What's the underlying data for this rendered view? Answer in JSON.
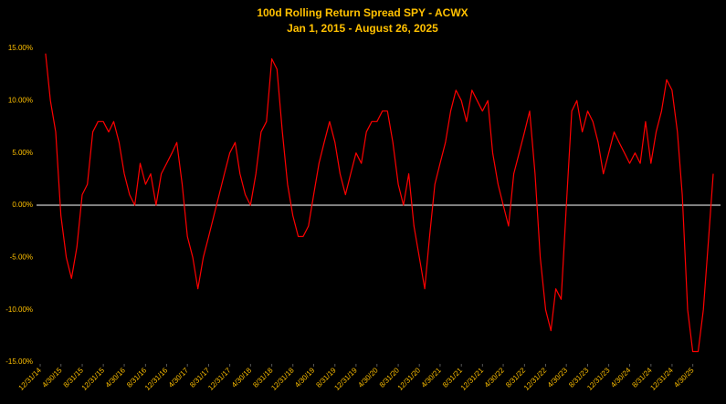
{
  "chart_data": {
    "type": "line",
    "title": "100d Rolling Return Spread SPY - ACWX",
    "subtitle": "Jan 1, 2015 - August 26, 2025",
    "x": [
      "2015-01-31",
      "2015-02-28",
      "2015-03-31",
      "2015-04-30",
      "2015-05-31",
      "2015-06-30",
      "2015-07-31",
      "2015-08-31",
      "2015-09-30",
      "2015-10-31",
      "2015-11-30",
      "2015-12-31",
      "2016-01-31",
      "2016-02-29",
      "2016-03-31",
      "2016-04-30",
      "2016-05-31",
      "2016-06-30",
      "2016-07-31",
      "2016-08-31",
      "2016-09-30",
      "2016-10-31",
      "2016-11-30",
      "2016-12-31",
      "2017-01-31",
      "2017-02-28",
      "2017-03-31",
      "2017-04-30",
      "2017-05-31",
      "2017-06-30",
      "2017-07-31",
      "2017-08-31",
      "2017-09-30",
      "2017-10-31",
      "2017-11-30",
      "2017-12-31",
      "2018-01-31",
      "2018-02-28",
      "2018-03-31",
      "2018-04-30",
      "2018-05-31",
      "2018-06-30",
      "2018-07-31",
      "2018-08-31",
      "2018-09-30",
      "2018-10-31",
      "2018-11-30",
      "2018-12-31",
      "2019-01-31",
      "2019-02-28",
      "2019-03-31",
      "2019-04-30",
      "2019-05-31",
      "2019-06-30",
      "2019-07-31",
      "2019-08-31",
      "2019-09-30",
      "2019-10-31",
      "2019-11-30",
      "2019-12-31",
      "2020-01-31",
      "2020-02-29",
      "2020-03-31",
      "2020-04-30",
      "2020-05-31",
      "2020-06-30",
      "2020-07-31",
      "2020-08-31",
      "2020-09-30",
      "2020-10-31",
      "2020-11-30",
      "2020-12-31",
      "2021-01-31",
      "2021-02-28",
      "2021-03-31",
      "2021-04-30",
      "2021-05-31",
      "2021-06-30",
      "2021-07-31",
      "2021-08-31",
      "2021-09-30",
      "2021-10-31",
      "2021-11-30",
      "2021-12-31",
      "2022-01-31",
      "2022-02-28",
      "2022-03-31",
      "2022-04-30",
      "2022-05-31",
      "2022-06-30",
      "2022-07-31",
      "2022-08-31",
      "2022-09-30",
      "2022-10-31",
      "2022-11-30",
      "2022-12-31",
      "2023-01-31",
      "2023-02-28",
      "2023-03-31",
      "2023-04-30",
      "2023-05-31",
      "2023-06-30",
      "2023-07-31",
      "2023-08-31",
      "2023-09-30",
      "2023-10-31",
      "2023-11-30",
      "2023-12-31",
      "2024-01-31",
      "2024-02-29",
      "2024-03-31",
      "2024-04-30",
      "2024-05-31",
      "2024-06-30",
      "2024-07-31",
      "2024-08-31",
      "2024-09-30",
      "2024-10-31",
      "2024-11-30",
      "2024-12-31",
      "2025-01-31",
      "2025-02-28",
      "2025-03-31",
      "2025-04-30",
      "2025-05-31",
      "2025-06-30",
      "2025-07-31",
      "2025-08-26"
    ],
    "series": [
      {
        "name": "SPY - ACWX",
        "color": "#ff0000",
        "values": [
          14.5,
          10,
          7,
          -1,
          -5,
          -7,
          -4,
          1,
          2,
          7,
          8,
          8,
          7,
          8,
          6,
          3,
          1,
          0,
          4,
          2,
          3,
          0,
          3,
          4,
          5,
          6,
          2,
          -3,
          -5,
          -8,
          -5,
          -3,
          -1,
          1,
          3,
          5,
          6,
          3,
          1,
          0,
          3,
          7,
          8,
          14,
          13,
          7,
          2,
          -1,
          -3,
          -3,
          -2,
          1,
          4,
          6,
          8,
          6,
          3,
          1,
          3,
          5,
          4,
          7,
          8,
          8,
          9,
          9,
          6,
          2,
          0,
          3,
          -2,
          -5,
          -8,
          -3,
          2,
          4,
          6,
          9,
          11,
          10,
          8,
          11,
          10,
          9,
          10,
          5,
          2,
          0,
          -2,
          3,
          5,
          7,
          9,
          3,
          -5,
          -10,
          -12,
          -8,
          -9,
          0,
          9,
          10,
          7,
          9,
          8,
          6,
          3,
          5,
          7,
          6,
          5,
          4,
          5,
          4,
          8,
          4,
          7,
          9,
          12,
          11,
          7,
          1,
          -10,
          -14,
          -14,
          -10,
          -3,
          3
        ]
      }
    ],
    "xlim": [
      "2014-12-31",
      "2025-08-26"
    ],
    "xticks": [
      {
        "value": "2014-12-31",
        "label": "12/31/14"
      },
      {
        "value": "2015-04-30",
        "label": "4/30/15"
      },
      {
        "value": "2015-08-31",
        "label": "8/31/15"
      },
      {
        "value": "2015-12-31",
        "label": "12/31/15"
      },
      {
        "value": "2016-04-30",
        "label": "4/30/16"
      },
      {
        "value": "2016-08-31",
        "label": "8/31/16"
      },
      {
        "value": "2016-12-31",
        "label": "12/31/16"
      },
      {
        "value": "2017-04-30",
        "label": "4/30/17"
      },
      {
        "value": "2017-08-31",
        "label": "8/31/17"
      },
      {
        "value": "2017-12-31",
        "label": "12/31/17"
      },
      {
        "value": "2018-04-30",
        "label": "4/30/18"
      },
      {
        "value": "2018-08-31",
        "label": "8/31/18"
      },
      {
        "value": "2018-12-31",
        "label": "12/31/18"
      },
      {
        "value": "2019-04-30",
        "label": "4/30/19"
      },
      {
        "value": "2019-08-31",
        "label": "8/31/19"
      },
      {
        "value": "2019-12-31",
        "label": "12/31/19"
      },
      {
        "value": "2020-04-30",
        "label": "4/30/20"
      },
      {
        "value": "2020-08-31",
        "label": "8/31/20"
      },
      {
        "value": "2020-12-31",
        "label": "12/31/20"
      },
      {
        "value": "2021-04-30",
        "label": "4/30/21"
      },
      {
        "value": "2021-08-31",
        "label": "8/31/21"
      },
      {
        "value": "2021-12-31",
        "label": "12/31/21"
      },
      {
        "value": "2022-04-30",
        "label": "4/30/22"
      },
      {
        "value": "2022-08-31",
        "label": "8/31/22"
      },
      {
        "value": "2022-12-31",
        "label": "12/31/22"
      },
      {
        "value": "2023-04-30",
        "label": "4/30/23"
      },
      {
        "value": "2023-08-31",
        "label": "8/31/23"
      },
      {
        "value": "2023-12-31",
        "label": "12/31/23"
      },
      {
        "value": "2024-04-30",
        "label": "4/30/24"
      },
      {
        "value": "2024-08-31",
        "label": "8/31/24"
      },
      {
        "value": "2024-12-31",
        "label": "12/31/24"
      },
      {
        "value": "2025-04-30",
        "label": "4/30/25"
      }
    ],
    "ylim": [
      -15,
      15
    ],
    "yticks": [
      {
        "value": 15,
        "label": "15.00%"
      },
      {
        "value": 10,
        "label": "10.00%"
      },
      {
        "value": 5,
        "label": "5.00%"
      },
      {
        "value": 0,
        "label": "0.00%"
      },
      {
        "value": -5,
        "label": "-5.00%"
      },
      {
        "value": -10,
        "label": "-10.00%"
      },
      {
        "value": -15,
        "label": "-15.00%"
      }
    ],
    "zero_line": true
  }
}
